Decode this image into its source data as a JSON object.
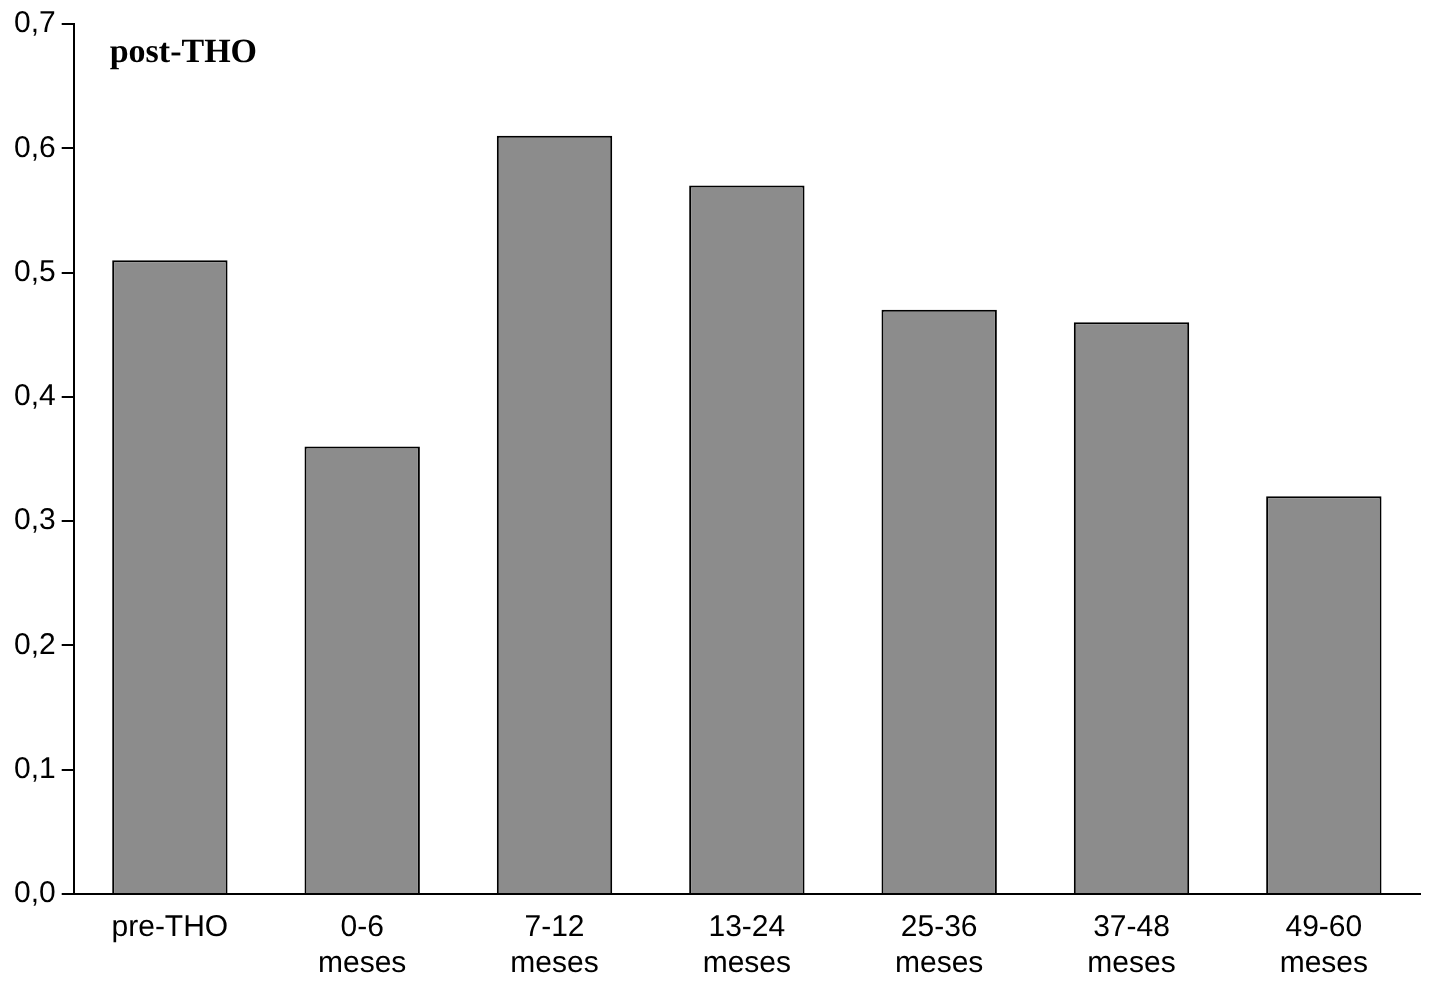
{
  "chart_data": {
    "type": "bar",
    "title": "post-THO",
    "categories": [
      "pre-THO",
      "0-6 meses",
      "7-12 meses",
      "13-24 meses",
      "25-36 meses",
      "37-48 meses",
      "49-60 meses"
    ],
    "values": [
      0.51,
      0.36,
      0.61,
      0.57,
      0.47,
      0.46,
      0.32
    ],
    "color": "#8c8c8c",
    "ylim": [
      0,
      0.7
    ],
    "yticks": [
      {
        "value": 0,
        "label": "0,0"
      },
      {
        "value": 0.1,
        "label": "0,1"
      },
      {
        "value": 0.2,
        "label": "0,2"
      },
      {
        "value": 0.3,
        "label": "0,3"
      },
      {
        "value": 0.4,
        "label": "0,4"
      },
      {
        "value": 0.5,
        "label": "0,5"
      },
      {
        "value": 0.6,
        "label": "0,6"
      },
      {
        "value": 0.7,
        "label": "0,7"
      }
    ],
    "grid": false,
    "legend": false
  }
}
